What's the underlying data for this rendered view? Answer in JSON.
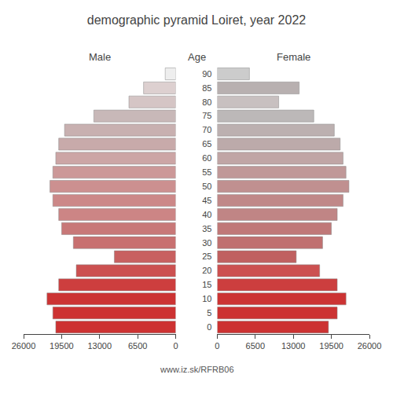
{
  "chart_data": {
    "type": "bar",
    "orientation": "horizontal",
    "title": "demographic pyramid Loiret, year 2022",
    "ylabel": "Age",
    "annotations": [
      {
        "text": "www.iz.sk/RFRB06"
      }
    ],
    "categories": [
      "0",
      "5",
      "10",
      "15",
      "20",
      "25",
      "30",
      "35",
      "40",
      "45",
      "50",
      "55",
      "60",
      "65",
      "70",
      "75",
      "80",
      "85",
      "90"
    ],
    "series": [
      {
        "name": "Male",
        "values": [
          20500,
          21000,
          22000,
          20000,
          17000,
          10500,
          17500,
          19500,
          20000,
          21000,
          21500,
          21000,
          20500,
          20000,
          19000,
          14000,
          8000,
          5500,
          1800
        ],
        "colors": [
          "#cd3232",
          "#cd3232",
          "#cc3333",
          "#cd3e3e",
          "#cc5050",
          "#c86060",
          "#c87070",
          "#c87878",
          "#cc8585",
          "#cc8888",
          "#cc9090",
          "#cc9898",
          "#cca5a5",
          "#c8aaaa",
          "#c8b0b0",
          "#c8b8b8",
          "#d5c5c5",
          "#ddd0d0",
          "#eeeeee"
        ]
      },
      {
        "name": "Female",
        "values": [
          19000,
          20500,
          22000,
          20500,
          17500,
          13500,
          18000,
          19500,
          20500,
          21500,
          22500,
          22000,
          21500,
          21000,
          20000,
          16500,
          10500,
          14000,
          5500
        ],
        "colors": [
          "#cc3232",
          "#cc3232",
          "#cc3333",
          "#cc3e3e",
          "#cc5050",
          "#c06060",
          "#c07070",
          "#c07878",
          "#c08585",
          "#c08888",
          "#c09090",
          "#c09898",
          "#c0a5a5",
          "#bcaaaa",
          "#bcb0b0",
          "#bcb8b8",
          "#c8c0c0",
          "#b8b0b0",
          "#cccccc"
        ]
      }
    ],
    "xlim": [
      0,
      26000
    ],
    "xticks": [
      0,
      6500,
      13000,
      19500,
      26000
    ],
    "grid": false
  }
}
